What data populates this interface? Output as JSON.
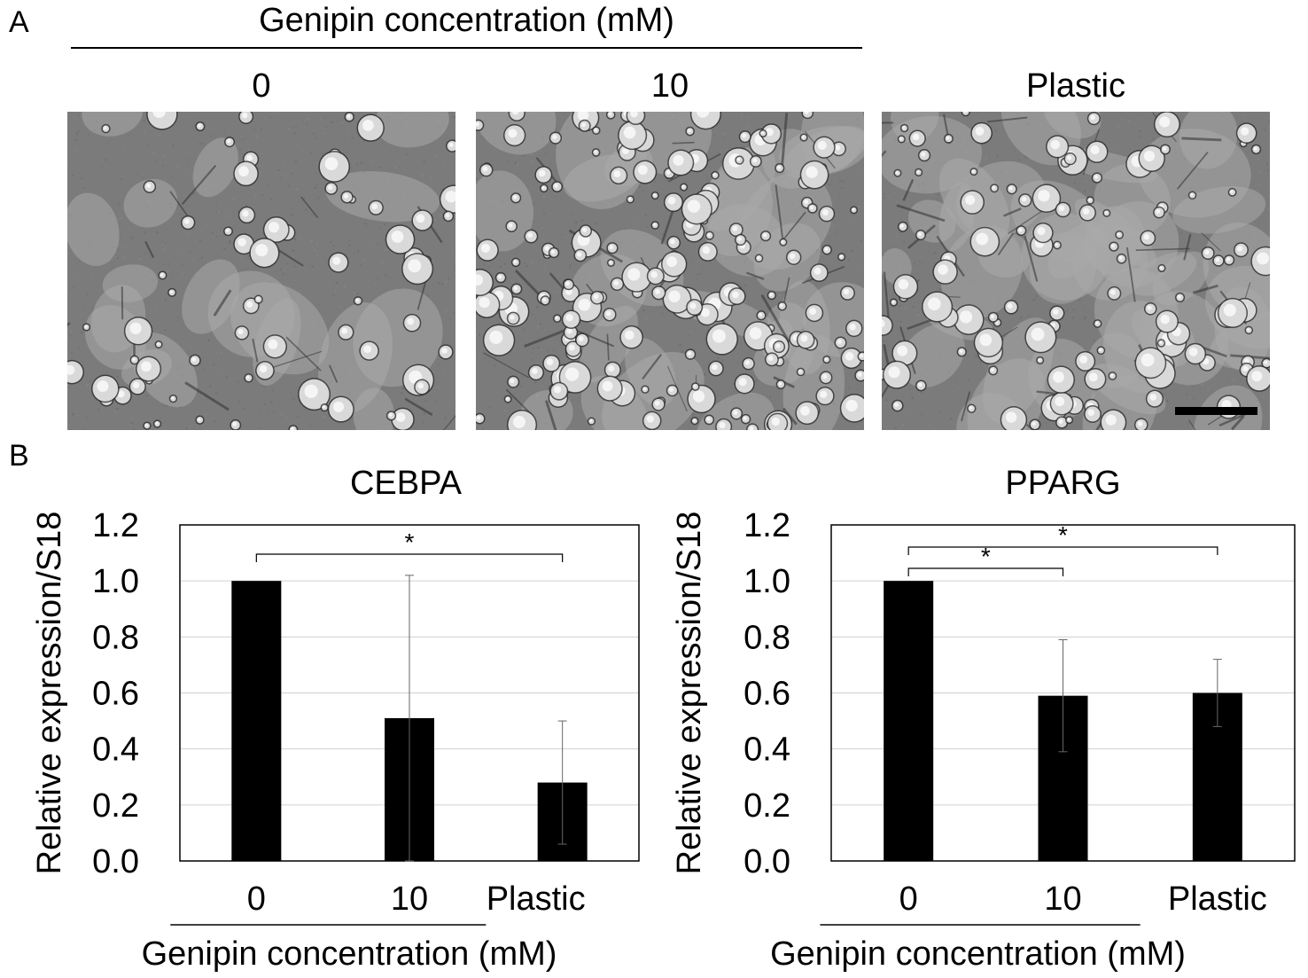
{
  "panel_a": {
    "letter": "A",
    "title": "Genipin concentration (mM)",
    "columns": [
      {
        "label": "0"
      },
      {
        "label": "10"
      },
      {
        "label": "Plastic"
      }
    ]
  },
  "panel_b": {
    "letter": "B"
  },
  "chart_data": [
    {
      "type": "bar",
      "title": "CEBPA",
      "categories": [
        "0",
        "10",
        "Plastic"
      ],
      "values": [
        1.0,
        0.51,
        0.28
      ],
      "errors": [
        0.0,
        0.51,
        0.22
      ],
      "ylabel": "Relative expression/S18",
      "xlabel": "Genipin concentration (mM)",
      "ylim": [
        0,
        1.2
      ],
      "yticks": [
        "0.0",
        "0.2",
        "0.4",
        "0.6",
        "0.8",
        "1.0",
        "1.2"
      ],
      "grid": true,
      "bar_color": "#000000",
      "significance": [
        {
          "from": "0",
          "to": "Plastic",
          "label": "*"
        }
      ]
    },
    {
      "type": "bar",
      "title": "PPARG",
      "categories": [
        "0",
        "10",
        "Plastic"
      ],
      "values": [
        1.0,
        0.59,
        0.6
      ],
      "errors": [
        0.0,
        0.2,
        0.12
      ],
      "ylabel": "Relative expression/S18",
      "xlabel": "Genipin concentration (mM)",
      "ylim": [
        0,
        1.2
      ],
      "yticks": [
        "0.0",
        "0.2",
        "0.4",
        "0.6",
        "0.8",
        "1.0",
        "1.2"
      ],
      "grid": true,
      "bar_color": "#000000",
      "significance": [
        {
          "from": "0",
          "to": "10",
          "label": "*"
        },
        {
          "from": "0",
          "to": "Plastic",
          "label": "*"
        }
      ]
    }
  ]
}
